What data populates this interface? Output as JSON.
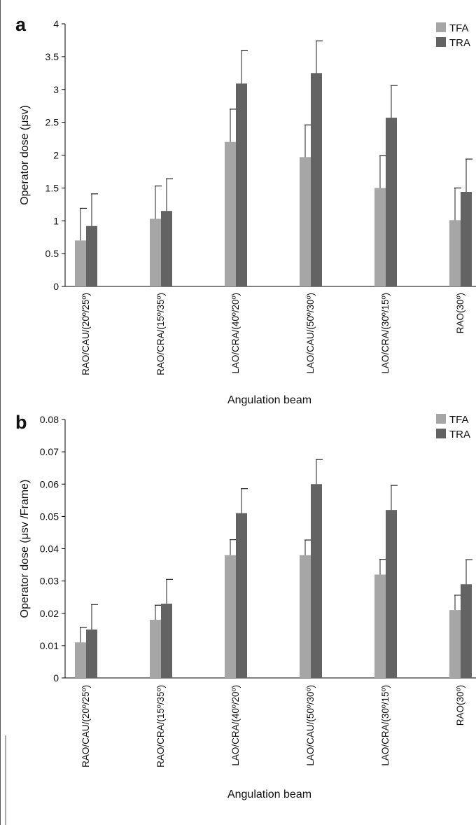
{
  "colors": {
    "TFA": "#a6a6a6",
    "TRA": "#636363",
    "error": "#222222",
    "axis": "#000000"
  },
  "chart_data": [
    {
      "type": "bar",
      "panel": "a",
      "ylabel": "Operator dose (μsv)",
      "xlabel": "Angulation beam",
      "ylim": [
        0,
        4
      ],
      "yticks": [
        0,
        0.5,
        1,
        1.5,
        2,
        2.5,
        3,
        3.5,
        4
      ],
      "ytick_labels": [
        "0",
        "0.5",
        "1",
        "1.5",
        "2",
        "2.5",
        "3",
        "3.5",
        "4"
      ],
      "legend": "top-right",
      "categories": [
        "RAO/CAU/(20º/25º)",
        "RAO/CRA/(15º/35º)",
        "LAO/CRA/(40º/20º)",
        "LAO/CAU/(50º/30º)",
        "LAO/CRA/(30º/15º)",
        "RAO(30º)"
      ],
      "series": [
        {
          "name": "TFA",
          "values": [
            0.7,
            1.03,
            2.2,
            1.97,
            1.5,
            1.01
          ],
          "errors": [
            0.49,
            0.5,
            0.5,
            0.49,
            0.49,
            0.49
          ]
        },
        {
          "name": "TRA",
          "values": [
            0.92,
            1.15,
            3.09,
            3.25,
            2.57,
            1.44
          ],
          "errors": [
            0.49,
            0.49,
            0.5,
            0.49,
            0.49,
            0.5
          ]
        }
      ]
    },
    {
      "type": "bar",
      "panel": "b",
      "ylabel": "Operator dose (μsv /Frame)",
      "xlabel": "Angulation beam",
      "ylim": [
        0,
        0.08
      ],
      "yticks": [
        0,
        0.01,
        0.02,
        0.03,
        0.04,
        0.05,
        0.06,
        0.07,
        0.08
      ],
      "ytick_labels": [
        "0",
        "0.01",
        "0.02",
        "0.03",
        "0.04",
        "0.05",
        "0.06",
        "0.07",
        "0.08"
      ],
      "legend": "top-right",
      "categories": [
        "RAO/CAU/(20º/25º)",
        "RAO/CRA/(15º/35º)",
        "LAO/CRA/(40º/20º)",
        "LAO/CAU/(50º/30º)",
        "LAO/CRA/(30º/15º)",
        "RAO(30º)"
      ],
      "series": [
        {
          "name": "TFA",
          "values": [
            0.011,
            0.018,
            0.038,
            0.038,
            0.032,
            0.021
          ],
          "errors": [
            0.0047,
            0.0045,
            0.0048,
            0.0047,
            0.0047,
            0.0046
          ]
        },
        {
          "name": "TRA",
          "values": [
            0.015,
            0.023,
            0.051,
            0.06,
            0.052,
            0.029
          ],
          "errors": [
            0.0077,
            0.0075,
            0.0076,
            0.0076,
            0.0076,
            0.0076
          ]
        }
      ]
    }
  ]
}
